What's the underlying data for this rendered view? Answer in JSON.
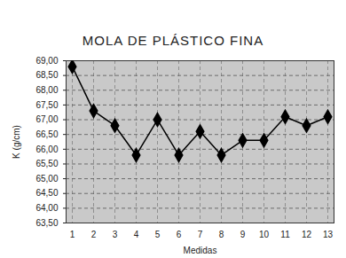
{
  "chart_data": {
    "type": "line",
    "title": "MOLA DE PLÁSTICO FINA",
    "x_label": "Medidas",
    "y_label": "K (g/cm)",
    "categories": [
      "1",
      "2",
      "3",
      "4",
      "5",
      "6",
      "7",
      "8",
      "9",
      "10",
      "11",
      "12",
      "13"
    ],
    "values": [
      68.8,
      67.3,
      66.8,
      65.8,
      67.0,
      65.8,
      66.6,
      65.8,
      66.3,
      66.3,
      67.1,
      66.8,
      67.1
    ],
    "ylim": [
      63.5,
      69
    ],
    "yticks": [
      {
        "value": 63.5,
        "label": "63,50"
      },
      {
        "value": 64,
        "label": "64,00"
      },
      {
        "value": 64.5,
        "label": "64,50"
      },
      {
        "value": 65,
        "label": "65,00"
      },
      {
        "value": 65.5,
        "label": "65,50"
      },
      {
        "value": 66,
        "label": "66,00"
      },
      {
        "value": 66.5,
        "label": "66,50"
      },
      {
        "value": 67,
        "label": "67,00"
      },
      {
        "value": 67.5,
        "label": "67,50"
      },
      {
        "value": 68,
        "label": "68,00"
      },
      {
        "value": 68.5,
        "label": "68,50"
      },
      {
        "value": 69,
        "label": "69,00"
      }
    ],
    "grid": true,
    "color": "#000000",
    "marker": "diamond",
    "line_style": "solid"
  }
}
